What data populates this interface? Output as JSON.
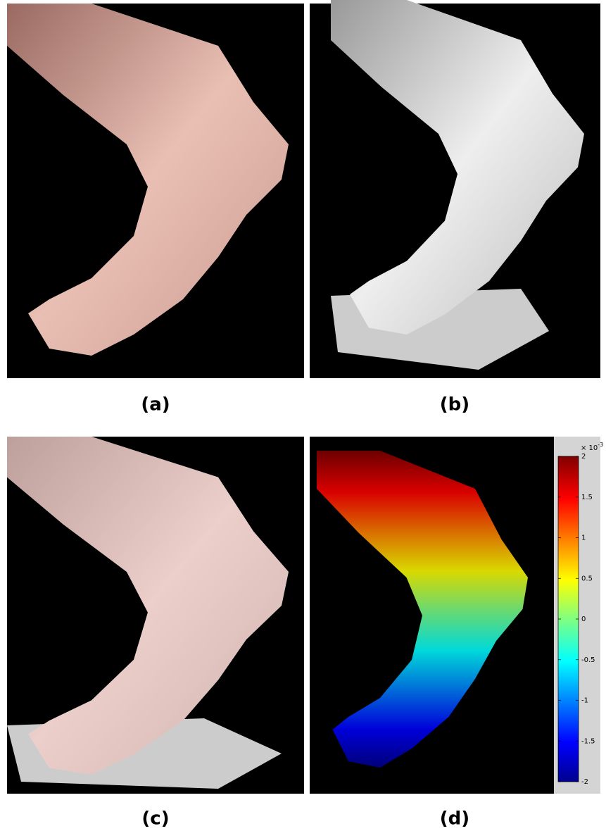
{
  "panels": [
    {
      "caption": "(a)"
    },
    {
      "caption": "(b)"
    },
    {
      "caption": "(c)"
    },
    {
      "caption": "(d)"
    }
  ],
  "colorbar": {
    "multiplier": "× 10",
    "exponent": "-3",
    "lim": [
      -2,
      2
    ],
    "ticks": [
      2,
      1.5,
      1,
      0.5,
      0,
      -0.5,
      -1,
      -1.5,
      -2
    ]
  }
}
